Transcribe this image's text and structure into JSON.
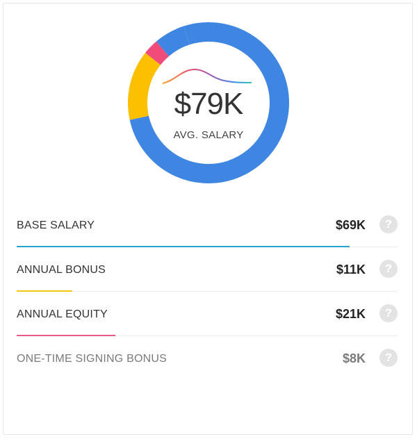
{
  "summary": {
    "amount": "$79K",
    "label": "AVG. SALARY"
  },
  "colors": {
    "base": "#3f86e3",
    "bonus": "#fcc000",
    "equity": "#f04b7a",
    "base_bar": "#2b9fce",
    "bonus_bar": "#f5c518",
    "equity_bar": "#ec5a86"
  },
  "donut_segments": [
    {
      "name": "base",
      "fraction": 0.7656
    },
    {
      "name": "bonus",
      "fraction": 0.1406
    },
    {
      "name": "equity",
      "fraction": 0.0313
    },
    {
      "name": "base_rest",
      "fraction": 0.0625
    }
  ],
  "components": [
    {
      "label": "BASE SALARY",
      "value": "$69K",
      "bar_fraction": 0.874,
      "color": "#2b9fce"
    },
    {
      "label": "ANNUAL BONUS",
      "value": "$11K",
      "bar_fraction": 0.146,
      "color": "#f5c518"
    },
    {
      "label": "ANNUAL EQUITY",
      "value": "$21K",
      "bar_fraction": 0.259,
      "color": "#ec5a86"
    },
    {
      "label": "ONE-TIME SIGNING BONUS",
      "value": "$8K",
      "bar_fraction": 0,
      "color": ""
    }
  ],
  "help_icon": "question-circle-icon",
  "help_glyph": "?"
}
